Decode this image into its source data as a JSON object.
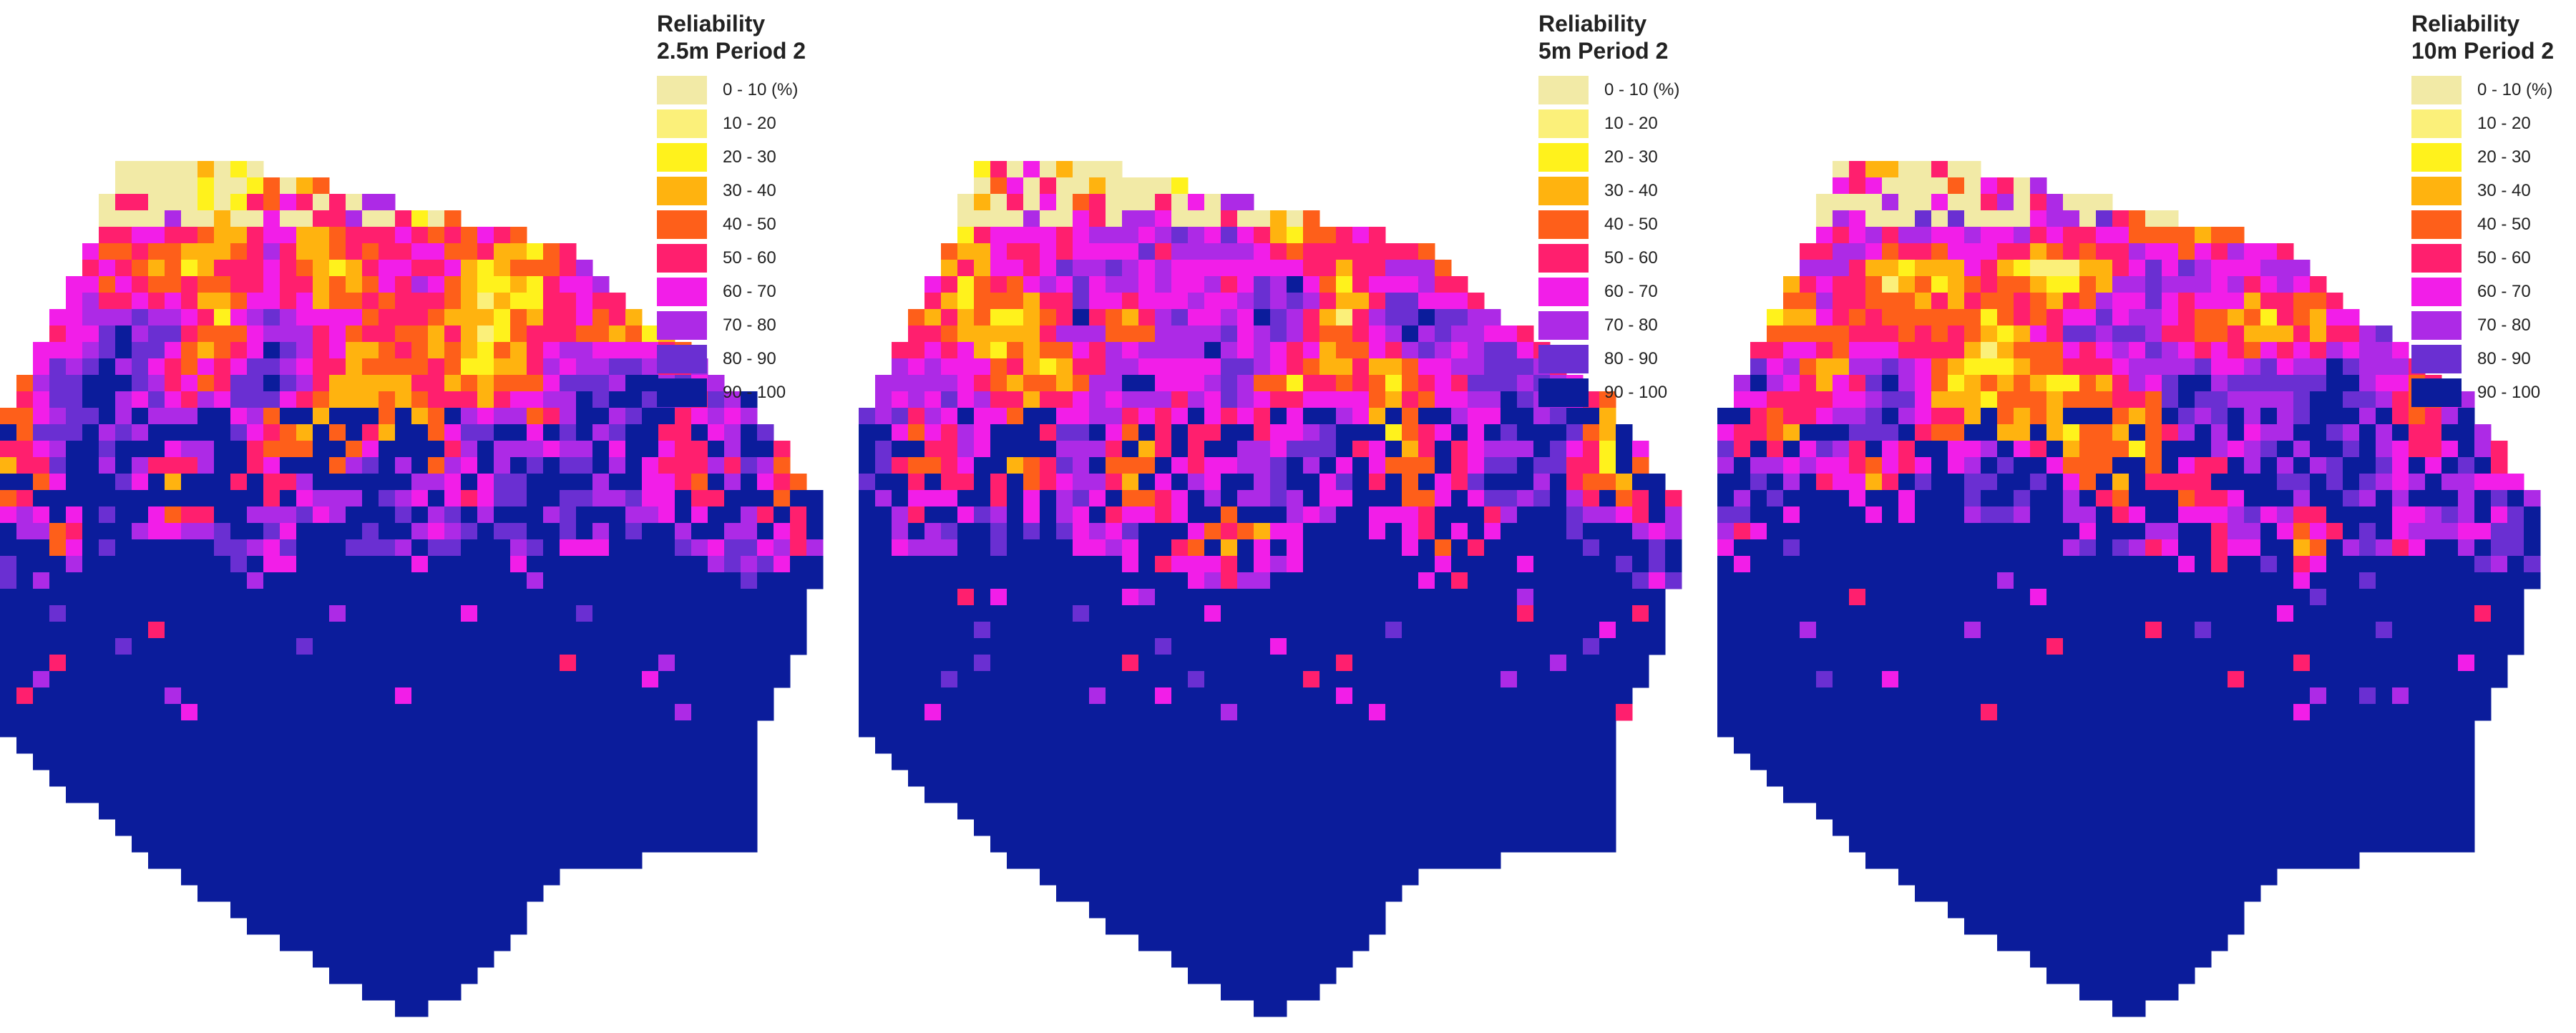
{
  "legend_classes": [
    {
      "label": "0 - 10 (%)",
      "color": "#f2eaa6"
    },
    {
      "label": "10 - 20",
      "color": "#fbf07a"
    },
    {
      "label": "20 - 30",
      "color": "#fff21c"
    },
    {
      "label": "30 - 40",
      "color": "#ffb30f"
    },
    {
      "label": "40 - 50",
      "color": "#fe5f1a"
    },
    {
      "label": "50 - 60",
      "color": "#ff1f6e"
    },
    {
      "label": "60 - 70",
      "color": "#f21ee8"
    },
    {
      "label": "70 - 80",
      "color": "#ad2ae6"
    },
    {
      "label": "80 - 90",
      "color": "#6a2fd2"
    },
    {
      "label": "90 - 100",
      "color": "#0b1c9b"
    }
  ],
  "panels": [
    {
      "title_line1": "Reliability",
      "title_line2": "2.5m Period 2"
    },
    {
      "title_line1": "Reliability",
      "title_line2": "5m Period 2"
    },
    {
      "title_line1": "Reliability",
      "title_line2": "10m Period 2"
    }
  ]
}
